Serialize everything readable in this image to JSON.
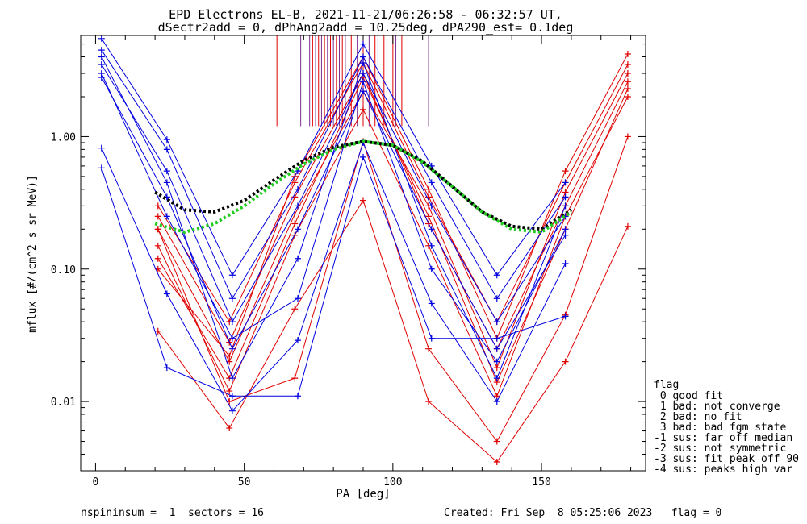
{
  "chart_data": {
    "type": "line",
    "title": "EPD Electrons EL-B, 2021-11-21/06:26:58 - 06:32:57 UT,",
    "subtitle": "dSectr2add = 0, dPhAng2add = 10.25deg, dPA290_est=   0.1deg",
    "xlabel": "PA [deg]",
    "ylabel": "mflux [#/(cm^2 s sr MeV)]",
    "xlim": [
      -5,
      185
    ],
    "ylim": [
      0.003,
      5.8
    ],
    "yscale": "log",
    "xticks": [
      "0",
      "50",
      "100",
      "150"
    ],
    "xtick_values": [
      0,
      50,
      100,
      150
    ],
    "yticks": [
      "0.01",
      "0.10",
      "1.00"
    ],
    "ytick_values": [
      0.01,
      0.1,
      1.0
    ],
    "colors": {
      "red": "#e00000",
      "blue": "#0000e0",
      "purple": "#7b2f8f",
      "green": "#22cc22",
      "black": "#000000"
    },
    "series": [
      {
        "color": "red",
        "x": [
          21,
          45,
          67,
          90,
          112,
          135,
          158,
          179
        ],
        "y": [
          0.2,
          0.02,
          0.26,
          2.2,
          0.3,
          0.018,
          0.38,
          3.0
        ]
      },
      {
        "color": "red",
        "x": [
          21,
          45,
          67,
          90,
          112,
          135,
          158,
          179
        ],
        "y": [
          0.25,
          0.028,
          0.35,
          3.0,
          0.22,
          0.025,
          0.3,
          2.6
        ]
      },
      {
        "color": "red",
        "x": [
          21,
          45,
          67,
          90,
          112,
          135,
          158,
          179
        ],
        "y": [
          0.15,
          0.012,
          0.18,
          1.6,
          0.15,
          0.011,
          0.25,
          2.0
        ]
      },
      {
        "color": "red",
        "x": [
          21,
          45,
          67,
          90,
          112,
          135,
          158,
          179
        ],
        "y": [
          0.3,
          0.04,
          0.45,
          3.6,
          0.35,
          0.04,
          0.45,
          3.5
        ]
      },
      {
        "color": "red",
        "x": [
          21,
          45,
          67,
          90,
          112,
          135,
          158,
          179
        ],
        "y": [
          0.12,
          0.015,
          0.22,
          2.8,
          0.25,
          0.014,
          0.2,
          2.3
        ]
      },
      {
        "color": "red",
        "x": [
          21,
          45,
          67,
          90,
          112,
          135,
          158,
          179
        ],
        "y": [
          0.034,
          0.0063,
          0.05,
          0.33,
          0.01,
          0.0035,
          0.02,
          0.21
        ]
      },
      {
        "color": "red",
        "x": [
          21,
          45,
          67,
          90,
          112,
          135,
          158,
          179
        ],
        "y": [
          0.2,
          0.01,
          0.015,
          0.92,
          0.025,
          0.005,
          0.045,
          1.0
        ]
      },
      {
        "color": "red",
        "x": [
          21,
          45,
          67,
          90,
          112,
          135,
          158,
          179
        ],
        "y": [
          0.1,
          0.022,
          0.5,
          4.0,
          0.4,
          0.03,
          0.55,
          4.2
        ]
      },
      {
        "color": "blue",
        "x": [
          2,
          24,
          46,
          68,
          90,
          113,
          135,
          158
        ],
        "y": [
          4.5,
          0.8,
          0.06,
          0.4,
          4.0,
          0.45,
          0.06,
          0.35
        ]
      },
      {
        "color": "blue",
        "x": [
          2,
          24,
          46,
          68,
          90,
          113,
          135,
          158
        ],
        "y": [
          3.5,
          0.55,
          0.04,
          0.3,
          3.0,
          0.3,
          0.04,
          0.25
        ]
      },
      {
        "color": "blue",
        "x": [
          2,
          24,
          46,
          68,
          90,
          113,
          135,
          158
        ],
        "y": [
          5.5,
          0.95,
          0.09,
          0.55,
          5.0,
          0.6,
          0.09,
          0.45
        ]
      },
      {
        "color": "blue",
        "x": [
          2,
          24,
          46,
          68,
          90,
          113,
          135,
          158
        ],
        "y": [
          2.8,
          0.35,
          0.025,
          0.2,
          2.2,
          0.2,
          0.025,
          0.18
        ]
      },
      {
        "color": "blue",
        "x": [
          2,
          24,
          46,
          68,
          90,
          113,
          135,
          158
        ],
        "y": [
          0.58,
          0.018,
          0.011,
          0.011,
          0.7,
          0.03,
          0.03,
          0.044
        ]
      },
      {
        "color": "blue",
        "x": [
          2,
          24,
          46,
          68,
          90,
          113,
          135,
          158
        ],
        "y": [
          0.82,
          0.065,
          0.0085,
          0.029,
          0.9,
          0.055,
          0.01,
          0.11
        ]
      },
      {
        "color": "blue",
        "x": [
          2,
          24,
          46,
          68,
          90,
          113,
          135,
          158
        ],
        "y": [
          4.0,
          0.45,
          0.015,
          0.12,
          3.6,
          0.15,
          0.015,
          0.3
        ]
      },
      {
        "color": "blue",
        "x": [
          2,
          24,
          46,
          68,
          90,
          113,
          135,
          158
        ],
        "y": [
          3.0,
          0.25,
          0.03,
          0.06,
          2.6,
          0.1,
          0.02,
          0.2
        ]
      }
    ],
    "fit_lines": [
      {
        "color": "black",
        "style": "dotted",
        "x": [
          20,
          30,
          40,
          50,
          60,
          70,
          80,
          90,
          100,
          110,
          120,
          130,
          140,
          150,
          160
        ],
        "y": [
          0.38,
          0.28,
          0.27,
          0.33,
          0.47,
          0.66,
          0.83,
          0.92,
          0.86,
          0.65,
          0.42,
          0.27,
          0.21,
          0.2,
          0.28
        ]
      },
      {
        "color": "green",
        "style": "dotted",
        "x": [
          20,
          30,
          40,
          50,
          60,
          70,
          80,
          90,
          100,
          110,
          120,
          130,
          140,
          150,
          160
        ],
        "y": [
          0.22,
          0.19,
          0.22,
          0.3,
          0.44,
          0.62,
          0.8,
          0.92,
          0.86,
          0.64,
          0.42,
          0.27,
          0.2,
          0.19,
          0.27
        ]
      }
    ],
    "vlines_red": [
      61,
      73,
      75,
      77,
      79,
      81,
      83,
      86,
      90,
      94,
      97,
      100,
      103
    ],
    "vlines_purple": [
      69,
      72,
      74,
      76,
      78,
      80,
      82,
      84,
      88,
      92,
      95,
      98,
      101,
      112
    ],
    "legend_title": "flag",
    "legend": [
      " 0 good fit",
      " 1 bad: not converge",
      " 2 bad: no fit",
      " 3 bad: bad fgm state",
      "-1 sus: far off median",
      "-2 sus: not symmetric",
      "-3 sus: fit peak off 90",
      "-4 sus: peaks high var"
    ]
  },
  "footer": {
    "left": "nspininsum =  1  sectors = 16",
    "right": "Created: Fri Sep  8 05:25:06 2023   flag = 0"
  }
}
